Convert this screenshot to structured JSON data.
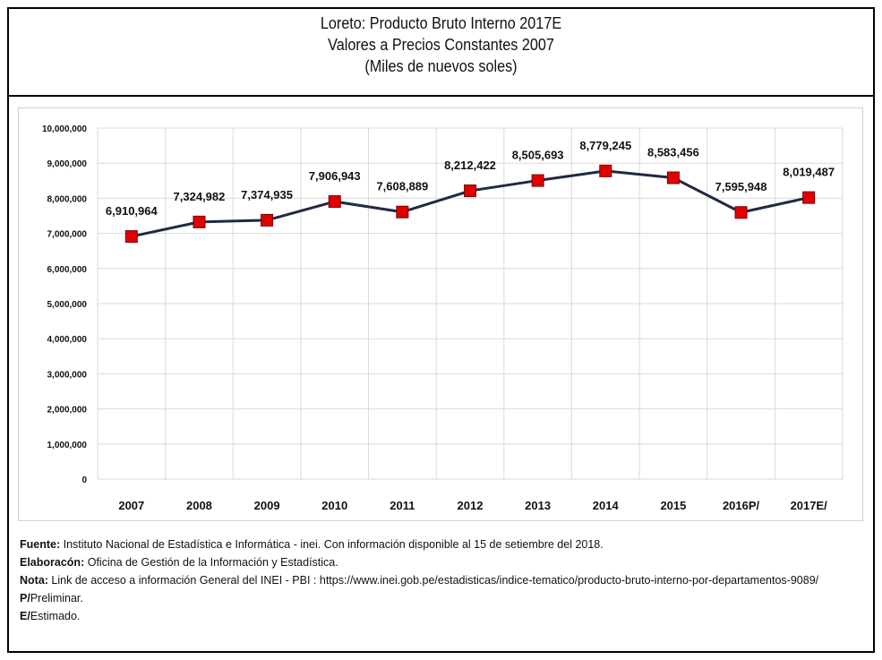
{
  "title": {
    "line1": "Loreto: Producto Bruto Interno 2017E",
    "line2": "Valores a Precios Constantes 2007",
    "line3": "(Miles de nuevos soles)"
  },
  "chart_data": {
    "type": "line",
    "categories": [
      "2007",
      "2008",
      "2009",
      "2010",
      "2011",
      "2012",
      "2013",
      "2014",
      "2015",
      "2016P/",
      "2017E/"
    ],
    "values": [
      6910964,
      7324982,
      7374935,
      7906943,
      7608889,
      8212422,
      8505693,
      8779245,
      8583456,
      7595948,
      8019487
    ],
    "value_labels": [
      "6,910,964",
      "7,324,982",
      "7,374,935",
      "7,906,943",
      "7,608,889",
      "8,212,422",
      "8,505,693",
      "8,779,245",
      "8,583,456",
      "7,595,948",
      "8,019,487"
    ],
    "ylim": [
      0,
      10000000
    ],
    "y_ticks": [
      0,
      1000000,
      2000000,
      3000000,
      4000000,
      5000000,
      6000000,
      7000000,
      8000000,
      9000000,
      10000000
    ],
    "y_tick_labels": [
      "0",
      "1,000,000",
      "2,000,000",
      "3,000,000",
      "4,000,000",
      "5,000,000",
      "6,000,000",
      "7,000,000",
      "8,000,000",
      "9,000,000",
      "10,000,000"
    ],
    "grid": true,
    "legend": "none",
    "colors": {
      "line": "#1f2a44",
      "marker": "#e00000",
      "marker_border": "#7a0000",
      "grid": "#d9d9d9"
    }
  },
  "notes": {
    "fuente_label": "Fuente:",
    "fuente_text": " Instituto Nacional de Estadística e Informática - inei. Con información disponible al 15 de setiembre del 2018.",
    "elaboracion_label": "Elaboracón:",
    "elaboracion_text": " Oficina de Gestión de la Información y Estadística.",
    "nota_label": "Nota:",
    "nota_text": " Link de acceso a información General del INEI - PBI : https://www.inei.gob.pe/estadisticas/indice-tematico/producto-bruto-interno-por-departamentos-9089/",
    "p_label": "P/",
    "p_text": "Preliminar.",
    "e_label": "E/",
    "e_text": "Estimado."
  }
}
